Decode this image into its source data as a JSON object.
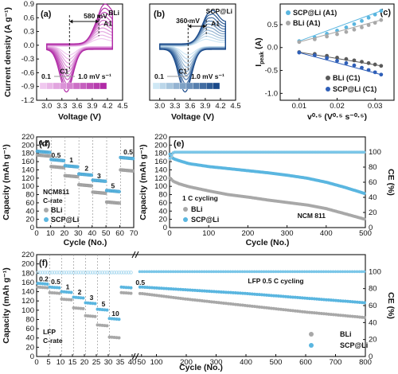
{
  "colors": {
    "bli": "#a8a8a8",
    "scp": "#5ab6e0",
    "bli_dark": "#5a5a5a",
    "scp_dark": "#2f5fb8",
    "purple": "#b02aa6",
    "blue": "#1a4a8a"
  },
  "chart_data": [
    {
      "panel": "(a)",
      "type": "line",
      "xlabel": "Voltage (V)",
      "ylabel": "Current density (A g⁻¹)",
      "xlim": [
        2.8,
        4.5
      ],
      "ylim": [
        -1.2,
        0.9
      ],
      "xticks": [
        "3.0",
        "3.3",
        "3.6",
        "3.9",
        "4.2",
        "4.5"
      ],
      "yticks": [
        "-1.2",
        "-0.9",
        "-0.6",
        "-0.3",
        "0.0",
        "0.3",
        "0.6",
        "0.9"
      ],
      "annotations": [
        "BLi",
        "580 mV",
        "A1",
        "C1"
      ],
      "scan_rate_labels": [
        "0.1",
        "1.0 mV s⁻¹"
      ],
      "scan_rates": [
        0.1,
        0.2,
        0.3,
        0.4,
        0.5,
        0.6,
        0.7,
        0.8,
        0.9,
        1.0
      ],
      "peak_A1_v": 4.03,
      "peak_C1_v": 3.45
    },
    {
      "panel": "(b)",
      "type": "line",
      "xlabel": "Voltage (V)",
      "xlim": [
        2.8,
        4.5
      ],
      "ylim": [
        -1.2,
        0.9
      ],
      "xticks": [
        "3.0",
        "3.3",
        "3.6",
        "3.9",
        "4.2",
        "4.5"
      ],
      "annotations": [
        "SCP@Li",
        "360 mV",
        "A1",
        "C1"
      ],
      "scan_rate_labels": [
        "0.1",
        "1.0 mV s⁻¹"
      ],
      "scan_rates": [
        0.1,
        0.2,
        0.3,
        0.4,
        0.5,
        0.6,
        0.7,
        0.8,
        0.9,
        1.0
      ],
      "peak_A1_v": 3.92,
      "peak_C1_v": 3.56
    },
    {
      "panel": "(c)",
      "type": "scatter",
      "xlabel": "v⁰·⁵ (V⁰·⁵ s⁻⁰·⁵)",
      "ylabel": "I",
      "ylabel_sub": "peak",
      "ylabel_unit": " (A)",
      "xlim": [
        0.005,
        0.035
      ],
      "ylim": [
        -1.15,
        0.95
      ],
      "xticks": [
        "0.01",
        "0.02",
        "0.03"
      ],
      "xtick_values": [
        0.01,
        0.02,
        0.03
      ],
      "yticks": [
        "-1.0",
        "-0.5",
        "0.0",
        "0.5"
      ],
      "ytick_values": [
        -1.0,
        -0.5,
        0.0,
        0.5
      ],
      "x": [
        0.01,
        0.0141,
        0.0173,
        0.02,
        0.0224,
        0.0245,
        0.0265,
        0.0283,
        0.03,
        0.0316
      ],
      "series": [
        {
          "name": "SCP@Li (A1)",
          "values": [
            0.14,
            0.22,
            0.3,
            0.37,
            0.44,
            0.51,
            0.58,
            0.65,
            0.72,
            0.8
          ]
        },
        {
          "name": "BLi (A1)",
          "values": [
            0.12,
            0.18,
            0.24,
            0.29,
            0.34,
            0.39,
            0.44,
            0.49,
            0.54,
            0.6
          ]
        },
        {
          "name": "BLi (C1)",
          "values": [
            -0.1,
            -0.14,
            -0.18,
            -0.22,
            -0.25,
            -0.28,
            -0.31,
            -0.34,
            -0.37,
            -0.4
          ]
        },
        {
          "name": "SCP@Li (C1)",
          "values": [
            -0.11,
            -0.17,
            -0.23,
            -0.29,
            -0.34,
            -0.39,
            -0.44,
            -0.49,
            -0.54,
            -0.59
          ]
        }
      ]
    },
    {
      "panel": "(d)",
      "type": "scatter",
      "xlabel": "Cycle (No.)",
      "ylabel": "Capacity (mAh g⁻¹)",
      "xlim": [
        0,
        70
      ],
      "ylim": [
        0,
        220
      ],
      "xticks": [
        "0",
        "10",
        "20",
        "30",
        "40",
        "50",
        "60",
        "70"
      ],
      "yticks": [
        "0",
        "20",
        "40",
        "60",
        "80",
        "100",
        "120",
        "140",
        "160",
        "180",
        "200",
        "220"
      ],
      "rate_labels": [
        "0.2",
        "0.5",
        "1",
        "2",
        "3",
        "5",
        "0.5"
      ],
      "annotations": [
        "NCM811",
        "C-rate"
      ],
      "series": [
        {
          "name": "BLi",
          "segments": [
            [
              1,
              10,
              176
            ],
            [
              11,
              20,
              148
            ],
            [
              21,
              30,
              126
            ],
            [
              31,
              40,
              104
            ],
            [
              41,
              50,
              86
            ],
            [
              51,
              60,
              62
            ],
            [
              61,
              70,
              140
            ]
          ]
        },
        {
          "name": "SCP@Li",
          "segments": [
            [
              1,
              10,
              185
            ],
            [
              11,
              20,
              165
            ],
            [
              21,
              30,
              150
            ],
            [
              31,
              40,
              130
            ],
            [
              41,
              50,
              115
            ],
            [
              51,
              60,
              90
            ],
            [
              61,
              70,
              170
            ]
          ]
        }
      ]
    },
    {
      "panel": "(e)",
      "type": "scatter",
      "xlabel": "Cycle (No.)",
      "ylabel": "Capacity (mAh g⁻¹)",
      "ylabel_right": "CE (%)",
      "xlim": [
        0,
        500
      ],
      "ylim": [
        0,
        220
      ],
      "ylim_right": [
        0,
        120
      ],
      "xticks": [
        "0",
        "100",
        "200",
        "300",
        "400",
        "500"
      ],
      "yticks": [
        "0",
        "20",
        "40",
        "60",
        "80",
        "100",
        "120",
        "140",
        "160",
        "180",
        "200",
        "220"
      ],
      "yticks_right": [
        "0",
        "20",
        "40",
        "60",
        "80",
        "100"
      ],
      "annotations": [
        "1 C cycling",
        "NCM 811"
      ],
      "series": [
        {
          "name": "BLi",
          "x": [
            1,
            10,
            25,
            50,
            100,
            150,
            200,
            250,
            300,
            350,
            400,
            450,
            500
          ],
          "values": [
            120,
            112,
            106,
            99,
            89,
            80,
            74,
            67,
            61,
            55,
            46,
            33,
            20
          ]
        },
        {
          "name": "SCP@Li",
          "x": [
            1,
            10,
            25,
            50,
            100,
            150,
            200,
            250,
            300,
            350,
            400,
            450,
            500
          ],
          "values": [
            178,
            167,
            162,
            155,
            148,
            143,
            138,
            133,
            127,
            120,
            110,
            97,
            82
          ]
        },
        {
          "name": "BLi CE",
          "x": [
            1,
            10,
            500
          ],
          "values": [
            90,
            99.5,
            99.5
          ]
        },
        {
          "name": "SCP@Li CE",
          "x": [
            1,
            10,
            500
          ],
          "values": [
            92,
            99.8,
            99.8
          ]
        }
      ]
    },
    {
      "panel": "(f)",
      "type": "scatter",
      "xlabel": "Cycle (No.)",
      "ylabel": "Capacity (mAh g⁻¹)",
      "ylabel_right": "CE (%)",
      "xlim": [
        0,
        800
      ],
      "ylim": [
        0,
        220
      ],
      "ylim_right": [
        0,
        120
      ],
      "xticks": [
        "0",
        "5",
        "10",
        "15",
        "20",
        "25",
        "30",
        "35",
        "40",
        "50",
        "100",
        "200",
        "300",
        "400",
        "500",
        "600",
        "700",
        "800"
      ],
      "yticks": [
        "0",
        "20",
        "40",
        "60",
        "80",
        "100",
        "120",
        "140",
        "160",
        "180",
        "200",
        "220"
      ],
      "yticks_right": [
        "0",
        "20",
        "40",
        "60",
        "80",
        "100"
      ],
      "rate_labels": [
        "0.2",
        "0.5",
        "1",
        "2",
        "3",
        "5",
        "10",
        "0.5"
      ],
      "annotations": [
        "LFP",
        "C-rate",
        "LFP 0.5 C cycling"
      ],
      "series": [
        {
          "name": "BLi",
          "rate_segments": [
            [
              1,
              5,
              150
            ],
            [
              6,
              10,
              138
            ],
            [
              11,
              15,
              124
            ],
            [
              16,
              20,
              105
            ],
            [
              21,
              25,
              88
            ],
            [
              26,
              30,
              68
            ],
            [
              31,
              35,
              42
            ],
            [
              36,
              40,
              138
            ]
          ],
          "cycling_x": [
            50,
            100,
            200,
            300,
            400,
            500,
            600,
            700,
            800
          ],
          "cycling_values": [
            136,
            132,
            124,
            117,
            110,
            103,
            96,
            90,
            84
          ]
        },
        {
          "name": "SCP@Li",
          "rate_segments": [
            [
              1,
              5,
              158
            ],
            [
              6,
              10,
              150
            ],
            [
              11,
              15,
              140
            ],
            [
              16,
              20,
              128
            ],
            [
              21,
              25,
              116
            ],
            [
              26,
              30,
              102
            ],
            [
              31,
              35,
              82
            ],
            [
              36,
              40,
              150
            ]
          ],
          "cycling_x": [
            50,
            100,
            200,
            300,
            400,
            500,
            600,
            700,
            800
          ],
          "cycling_values": [
            150,
            148,
            144,
            140,
            136,
            131,
            126,
            121,
            116
          ]
        },
        {
          "name": "CE",
          "x": [
            1,
            800
          ],
          "values": [
            100,
            100
          ]
        }
      ]
    }
  ]
}
